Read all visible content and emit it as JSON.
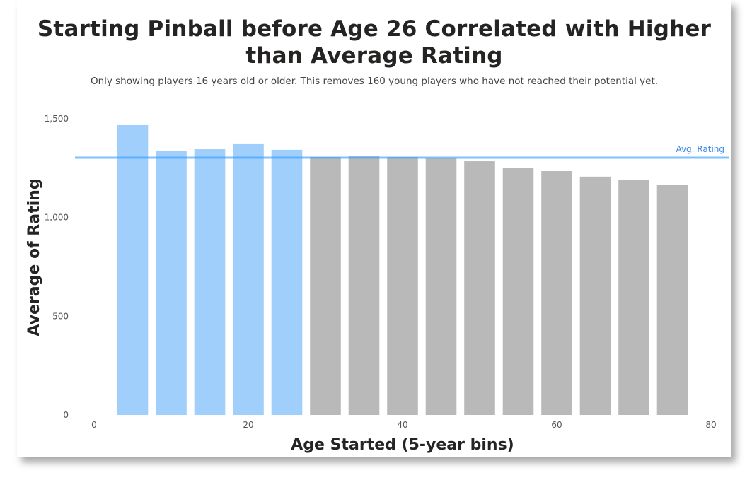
{
  "chart_data": {
    "type": "bar",
    "title": "Starting Pinball before Age 26 Correlated with Higher than Average Rating",
    "subtitle": "Only showing players 16 years old or older. This removes 160 young players who have not reached their potential yet.",
    "xlabel": "Age Started (5-year bins)",
    "ylabel": "Average of Rating",
    "x": [
      5,
      10,
      15,
      20,
      25,
      30,
      35,
      40,
      45,
      50,
      55,
      60,
      65,
      70,
      75
    ],
    "values": [
      1468,
      1339,
      1346,
      1375,
      1343,
      1307,
      1310,
      1307,
      1300,
      1285,
      1250,
      1235,
      1207,
      1192,
      1164
    ],
    "highlight_below_age": 26,
    "xlim": [
      0,
      80
    ],
    "ylim": [
      0,
      1500
    ],
    "x_ticks": [
      {
        "v": 0,
        "label": "0"
      },
      {
        "v": 20,
        "label": "20"
      },
      {
        "v": 40,
        "label": "40"
      },
      {
        "v": 60,
        "label": "60"
      },
      {
        "v": 80,
        "label": "80"
      }
    ],
    "y_ticks": [
      {
        "v": 0,
        "label": "0"
      },
      {
        "v": 500,
        "label": "500"
      },
      {
        "v": 1000,
        "label": "1,000"
      },
      {
        "v": 1500,
        "label": "1,500"
      }
    ],
    "reference_line": {
      "label": "Avg. Rating",
      "value": 1303
    },
    "grid": false,
    "colors": {
      "highlight": "#a0cffb",
      "other": "#b9b9b9",
      "reference": "#3aa0ff",
      "reference_label": "#3a86e8"
    }
  }
}
